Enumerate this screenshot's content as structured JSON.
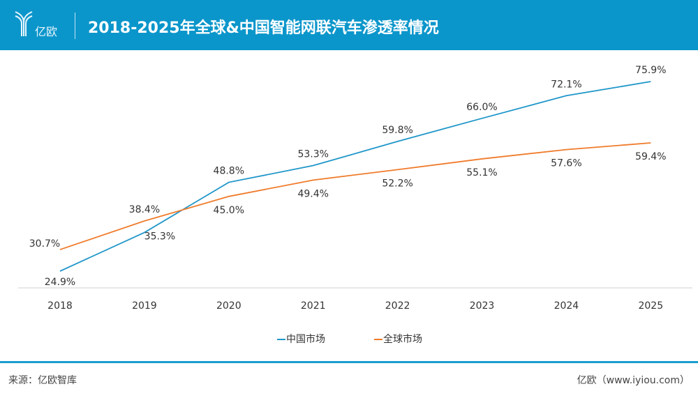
{
  "header": {
    "logo_text": "亿欧",
    "title": "2018-2025年全球&中国智能网联汽车渗透率情况"
  },
  "chart_data": {
    "type": "line",
    "title": "2018-2025年全球&中国智能网联汽车渗透率情况",
    "categories": [
      "2018",
      "2019",
      "2020",
      "2021",
      "2022",
      "2023",
      "2024",
      "2025"
    ],
    "series": [
      {
        "name": "中国市场",
        "color": "#1f96c9",
        "values": [
          24.9,
          35.3,
          48.8,
          53.3,
          59.8,
          66.0,
          72.1,
          75.9
        ],
        "labels": [
          "24.9%",
          "35.3%",
          "48.8%",
          "53.3%",
          "59.8%",
          "66.0%",
          "72.1%",
          "75.9%"
        ]
      },
      {
        "name": "全球市场",
        "color": "#f07b2b",
        "values": [
          30.7,
          38.4,
          45.0,
          49.4,
          52.2,
          55.1,
          57.6,
          59.4
        ],
        "labels": [
          "30.7%",
          "38.4%",
          "45.0%",
          "49.4%",
          "52.2%",
          "55.1%",
          "57.6%",
          "59.4%"
        ]
      }
    ],
    "unit": "%",
    "ylim": [
      20,
      80
    ],
    "grid": false,
    "legend": "bottom"
  },
  "footer": {
    "source": "来源：亿欧智库",
    "site": "亿欧（www.iyiou.com）"
  }
}
